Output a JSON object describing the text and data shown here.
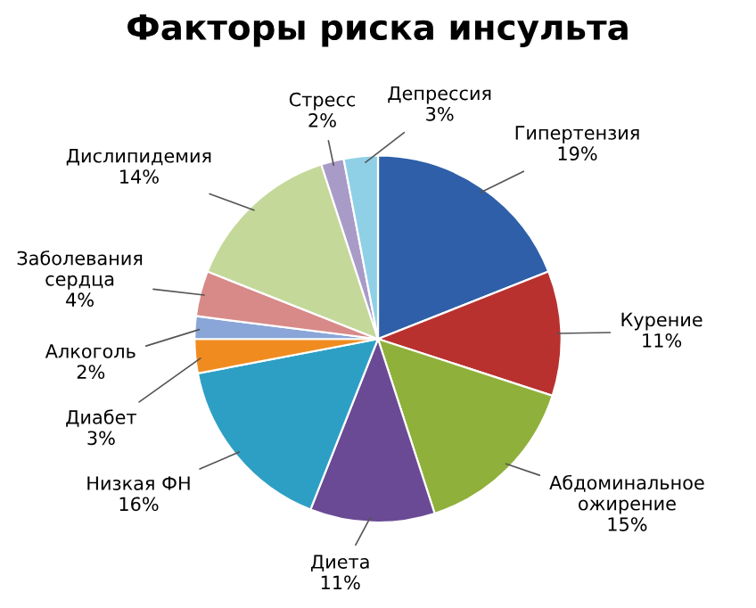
{
  "chart_data": {
    "type": "pie",
    "title": "Факторы риска инсульта",
    "categories": [
      "Гипертензия",
      "Курение",
      "Абдоминальное ожирение",
      "Диета",
      "Низкая ФН",
      "Диабет",
      "Алкоголь",
      "Заболевания сердца",
      "Дислипидемия",
      "Стресс",
      "Депрессия"
    ],
    "values": [
      19,
      11,
      15,
      11,
      16,
      3,
      2,
      4,
      14,
      2,
      3
    ],
    "value_labels": [
      "19%",
      "11%",
      "15%",
      "11%",
      "16%",
      "3%",
      "2%",
      "4%",
      "14%",
      "2%",
      "3%"
    ],
    "colors": [
      "#2e5fa8",
      "#b8312f",
      "#8fb03a",
      "#6a4a94",
      "#2e9fc4",
      "#f08c1f",
      "#8aa6d8",
      "#d88a88",
      "#c4d89a",
      "#a99bc7",
      "#8fd0e6"
    ],
    "legend": false
  }
}
